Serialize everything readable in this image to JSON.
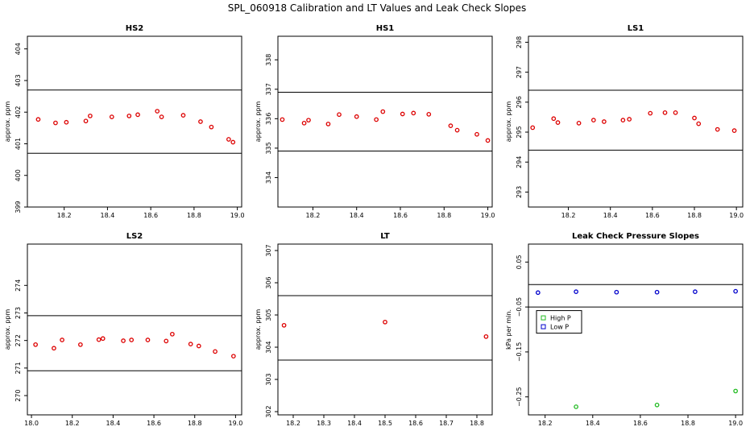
{
  "title": "SPL_060918  Calibration and LT Values and Leak Check Slopes",
  "chart_data": [
    {
      "type": "scatter",
      "title": "HS2",
      "ylabel": "approx. ppm",
      "xlim": [
        18.03,
        19.02
      ],
      "ylim": [
        399,
        404.4
      ],
      "xticks": [
        18.2,
        18.4,
        18.6,
        18.8,
        19.0
      ],
      "xtick_labels": [
        "18.2",
        "18.4",
        "18.6",
        "18.8",
        "19.0"
      ],
      "yticks": [
        399,
        400,
        401,
        402,
        403,
        404
      ],
      "ytick_labels": [
        "399",
        "400",
        "401",
        "402",
        "403",
        "404"
      ],
      "hlines": [
        402.7,
        400.7
      ],
      "marker_color": "#dd0000",
      "series": [
        {
          "x": [
            18.08,
            18.16,
            18.21,
            18.3,
            18.32,
            18.42,
            18.5,
            18.54,
            18.63,
            18.65,
            18.75,
            18.83,
            18.88,
            18.96,
            18.98
          ],
          "y": [
            401.77,
            401.66,
            401.68,
            401.72,
            401.88,
            401.85,
            401.88,
            401.92,
            402.03,
            401.85,
            401.9,
            401.7,
            401.53,
            401.14,
            401.05
          ]
        }
      ]
    },
    {
      "type": "scatter",
      "title": "HS1",
      "ylabel": "approx. ppm",
      "xlim": [
        18.04,
        19.02
      ],
      "ylim": [
        333,
        338.8
      ],
      "xticks": [
        18.2,
        18.4,
        18.6,
        18.8,
        19.0
      ],
      "xtick_labels": [
        "18.2",
        "18.4",
        "18.6",
        "18.8",
        "19.0"
      ],
      "yticks": [
        334,
        335,
        336,
        337,
        338
      ],
      "ytick_labels": [
        "334",
        "335",
        "336",
        "337",
        "338"
      ],
      "hlines": [
        336.9,
        334.9
      ],
      "marker_color": "#dd0000",
      "series": [
        {
          "x": [
            18.06,
            18.16,
            18.18,
            18.27,
            18.32,
            18.4,
            18.49,
            18.52,
            18.61,
            18.66,
            18.73,
            18.83,
            18.86,
            18.95,
            19.0
          ],
          "y": [
            335.97,
            335.85,
            335.95,
            335.82,
            336.14,
            336.07,
            335.97,
            336.24,
            336.16,
            336.19,
            336.15,
            335.76,
            335.61,
            335.47,
            335.26
          ]
        }
      ]
    },
    {
      "type": "scatter",
      "title": "LS1",
      "ylabel": "approx. ppm",
      "xlim": [
        18.01,
        19.03
      ],
      "ylim": [
        292.5,
        298.2
      ],
      "xticks": [
        18.2,
        18.4,
        18.6,
        18.8,
        19.0
      ],
      "xtick_labels": [
        "18.2",
        "18.4",
        "18.6",
        "18.8",
        "19.0"
      ],
      "yticks": [
        293,
        294,
        295,
        296,
        297,
        298
      ],
      "ytick_labels": [
        "293",
        "294",
        "295",
        "296",
        "297",
        "298"
      ],
      "hlines": [
        296.4,
        294.4
      ],
      "marker_color": "#dd0000",
      "series": [
        {
          "x": [
            18.03,
            18.13,
            18.15,
            18.25,
            18.32,
            18.37,
            18.46,
            18.49,
            18.59,
            18.66,
            18.71,
            18.8,
            18.82,
            18.91,
            18.99
          ],
          "y": [
            295.15,
            295.45,
            295.32,
            295.3,
            295.4,
            295.35,
            295.4,
            295.43,
            295.63,
            295.65,
            295.65,
            295.47,
            295.28,
            295.09,
            295.05
          ]
        }
      ]
    },
    {
      "type": "scatter",
      "title": "LS2",
      "ylabel": "approx. ppm",
      "xlim": [
        17.98,
        19.03
      ],
      "ylim": [
        269.3,
        275.5
      ],
      "xticks": [
        18.0,
        18.2,
        18.4,
        18.6,
        18.8,
        19.0
      ],
      "xtick_labels": [
        "18.0",
        "18.2",
        "18.4",
        "18.6",
        "18.8",
        "19.0"
      ],
      "yticks": [
        270,
        271,
        272,
        273,
        274
      ],
      "ytick_labels": [
        "270",
        "271",
        "272",
        "273",
        "274"
      ],
      "hlines": [
        272.9,
        270.9
      ],
      "marker_color": "#dd0000",
      "series": [
        {
          "x": [
            18.02,
            18.11,
            18.15,
            18.24,
            18.33,
            18.35,
            18.45,
            18.49,
            18.57,
            18.66,
            18.69,
            18.78,
            18.82,
            18.9,
            18.99
          ],
          "y": [
            271.85,
            271.72,
            272.02,
            271.85,
            272.03,
            272.07,
            271.99,
            272.02,
            272.02,
            271.98,
            272.23,
            271.87,
            271.8,
            271.6,
            271.43
          ]
        }
      ]
    },
    {
      "type": "scatter",
      "title": "LT",
      "ylabel": "approx. ppm",
      "xlim": [
        18.15,
        18.85
      ],
      "ylim": [
        301.9,
        307.2
      ],
      "xticks": [
        18.2,
        18.3,
        18.4,
        18.5,
        18.6,
        18.7,
        18.8
      ],
      "xtick_labels": [
        "18.2",
        "18.3",
        "18.4",
        "18.5",
        "18.6",
        "18.7",
        "18.8"
      ],
      "yticks": [
        302,
        303,
        304,
        305,
        306,
        307
      ],
      "ytick_labels": [
        "302",
        "303",
        "304",
        "305",
        "306",
        "307"
      ],
      "hlines": [
        305.6,
        303.6
      ],
      "marker_color": "#dd0000",
      "series": [
        {
          "x": [
            18.17,
            18.5,
            18.83
          ],
          "y": [
            304.68,
            304.78,
            304.33
          ]
        }
      ]
    },
    {
      "type": "scatter",
      "title": "Leak Check Pressure Slopes",
      "ylabel": "kPa per min.",
      "xlim": [
        18.13,
        19.03
      ],
      "ylim": [
        -0.29,
        0.09
      ],
      "xticks": [
        18.2,
        18.4,
        18.6,
        18.8,
        19.0
      ],
      "xtick_labels": [
        "18.2",
        "18.4",
        "18.6",
        "18.8",
        "19.0"
      ],
      "yticks": [
        0.05,
        -0.05,
        -0.15,
        -0.25
      ],
      "ytick_labels": [
        "0.05",
        "−0.05",
        "−0.15",
        "−0.25"
      ],
      "hlines": [
        0.0,
        -0.05
      ],
      "legend": {
        "position": "left-middle",
        "entries": [
          {
            "label": "High P",
            "color": "#22bb22"
          },
          {
            "label": "Low P",
            "color": "#0000cc"
          }
        ]
      },
      "series": [
        {
          "name": "High P",
          "color": "#22bb22",
          "x": [
            18.33,
            18.67,
            19.0
          ],
          "y": [
            -0.272,
            -0.268,
            -0.237
          ]
        },
        {
          "name": "Low P",
          "color": "#0000cc",
          "x": [
            18.17,
            18.33,
            18.5,
            18.67,
            18.83,
            19.0
          ],
          "y": [
            -0.018,
            -0.016,
            -0.017,
            -0.017,
            -0.016,
            -0.015
          ]
        }
      ]
    }
  ]
}
